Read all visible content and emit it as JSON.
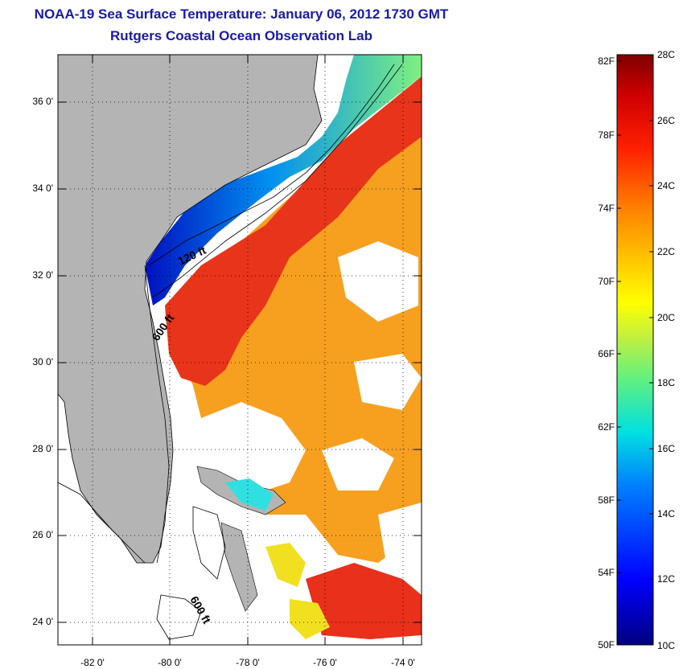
{
  "title": "NOAA-19 Sea Surface Temperature:  January 06, 2012 1730 GMT",
  "subtitle": "Rutgers Coastal Ocean Observation Lab",
  "latitude_labels": [
    "36 0'",
    "34 0'",
    "32 0'",
    "30 0'",
    "28 0'",
    "26 0'",
    "24 0'"
  ],
  "longitude_labels": [
    "-82 0'",
    "-80 0'",
    "-78 0'",
    "-76 0'",
    "-74 0'"
  ],
  "isobath_labels": [
    "120 ft",
    "600 ft",
    "600 ft"
  ],
  "colorbar": {
    "fahrenheit_labels": [
      "82F",
      "78F",
      "74F",
      "70F",
      "66F",
      "62F",
      "58F",
      "54F",
      "50F"
    ],
    "celsius_labels": [
      "28C",
      "26C",
      "24C",
      "22C",
      "20C",
      "18C",
      "16C",
      "14C",
      "12C",
      "10C"
    ]
  },
  "colors": {
    "title": "#1a1aa8",
    "land": "#b4b4b4",
    "no_data": "#ffffff",
    "warm": "#e8301a",
    "cold": "#1020c0"
  }
}
